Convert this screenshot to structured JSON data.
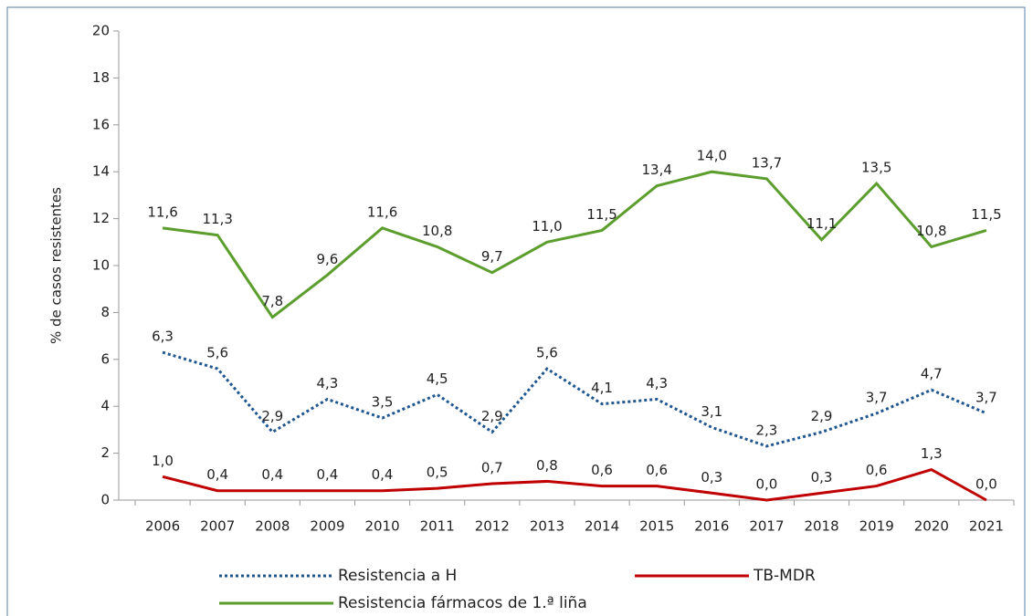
{
  "chart_data": {
    "type": "line",
    "y_label": "% de casos resistentes",
    "categories": [
      "2006",
      "2007",
      "2008",
      "2009",
      "2010",
      "2011",
      "2012",
      "2013",
      "2014",
      "2015",
      "2016",
      "2017",
      "2018",
      "2019",
      "2020",
      "2021"
    ],
    "series": [
      {
        "name": "Resistencia a H",
        "color": "#1f5690",
        "dash": "dotted",
        "values": [
          6.3,
          5.6,
          2.9,
          4.3,
          3.5,
          4.5,
          2.9,
          5.6,
          4.1,
          4.3,
          3.1,
          2.3,
          2.9,
          3.7,
          4.7,
          3.7
        ],
        "value_labels": [
          "6,3",
          "5,6",
          "2,9",
          "4,3",
          "3,5",
          "4,5",
          "2,9",
          "5,6",
          "4,1",
          "4,3",
          "3,1",
          "2,3",
          "2,9",
          "3,7",
          "4,7",
          "3,7"
        ]
      },
      {
        "name": "TB-MDR",
        "color": "#c00000",
        "dash": "solid",
        "values": [
          1.0,
          0.4,
          0.4,
          0.4,
          0.4,
          0.5,
          0.7,
          0.8,
          0.6,
          0.6,
          0.3,
          0.0,
          0.3,
          0.6,
          1.3,
          0.0
        ],
        "value_labels": [
          "1,0",
          "0,4",
          "0,4",
          "0,4",
          "0,4",
          "0,5",
          "0,7",
          "0,8",
          "0,6",
          "0,6",
          "0,3",
          "0,0",
          "0,3",
          "0,6",
          "1,3",
          "0,0"
        ]
      },
      {
        "name": "Resistencia fármacos de 1.ª liña",
        "color": "#5c9e2e",
        "dash": "solid",
        "values": [
          11.6,
          11.3,
          7.8,
          9.6,
          11.6,
          10.8,
          9.7,
          11.0,
          11.5,
          13.4,
          14.0,
          13.7,
          11.1,
          13.5,
          10.8,
          11.5
        ],
        "value_labels": [
          "11,6",
          "11,3",
          "7,8",
          "9,6",
          "11,6",
          "10,8",
          "9,7",
          "11,0",
          "11,5",
          "13,4",
          "14,0",
          "13,7",
          "11,1",
          "13,5",
          "10,8",
          "11,5"
        ]
      }
    ],
    "ylim": [
      0,
      20
    ],
    "yticks": [
      0,
      2,
      4,
      6,
      8,
      10,
      12,
      14,
      16,
      18,
      20
    ],
    "grid": false
  }
}
